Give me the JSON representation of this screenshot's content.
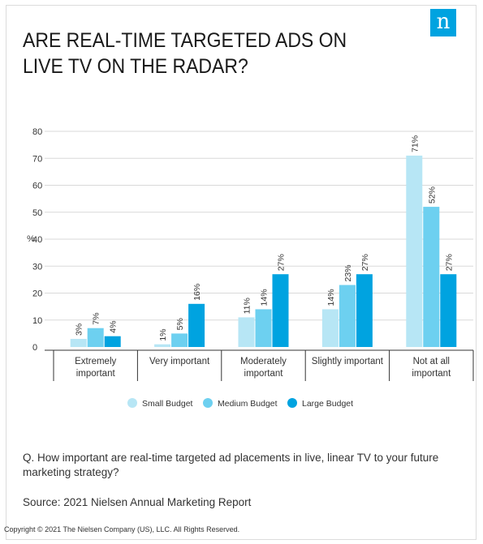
{
  "brand": {
    "logo_glyph": "n",
    "color": "#00a3e0"
  },
  "title": "ARE REAL-TIME TARGETED ADS ON LIVE TV ON THE RADAR?",
  "chart_data": {
    "type": "bar",
    "ylabel": "%",
    "ylim": [
      0,
      80
    ],
    "yticks": [
      0,
      10,
      20,
      30,
      40,
      50,
      60,
      70,
      80
    ],
    "grid": true,
    "legend_position": "bottom",
    "categories": [
      [
        "Extremely",
        "important"
      ],
      [
        "Very important"
      ],
      [
        "Moderately",
        "important"
      ],
      [
        "Slightly important"
      ],
      [
        "Not at all",
        "important"
      ]
    ],
    "series": [
      {
        "name": "Small Budget",
        "color": "#b7e6f5",
        "values": [
          3,
          1,
          11,
          14,
          71
        ],
        "labels": [
          "3%",
          "1%",
          "11%",
          "14%",
          "71%"
        ]
      },
      {
        "name": "Medium Budget",
        "color": "#6dd0f0",
        "values": [
          7,
          5,
          14,
          23,
          52
        ],
        "labels": [
          "7%",
          "5%",
          "14%",
          "23%",
          "52%"
        ]
      },
      {
        "name": "Large Budget",
        "color": "#00a3e0",
        "values": [
          4,
          16,
          27,
          27,
          27
        ],
        "labels": [
          "4%",
          "16%",
          "27%",
          "27%",
          "27%"
        ]
      }
    ]
  },
  "question": "Q. How important are real-time targeted ad placements in live, linear TV to your future marketing strategy?",
  "source": "Source: 2021 Nielsen Annual Marketing Report",
  "copyright": "Copyright © 2021 The Nielsen Company (US), LLC. All Rights Reserved."
}
